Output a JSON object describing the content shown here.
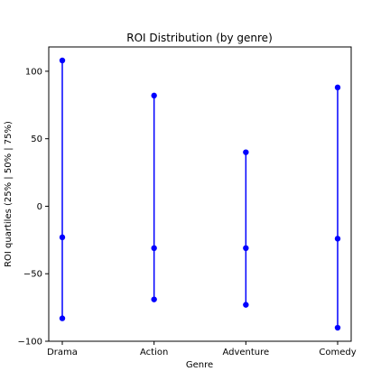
{
  "chart_data": {
    "type": "scatter",
    "title": "ROI Distribution (by genre)",
    "xlabel": "Genre",
    "ylabel": "ROI quartiles (25% | 50% | 75%)",
    "ylim": [
      -100,
      118
    ],
    "yticks": [
      -100,
      -50,
      0,
      50,
      100
    ],
    "ytick_labels": [
      "−100",
      "−50",
      "0",
      "50",
      "100"
    ],
    "categories": [
      "Drama",
      "Action",
      "Adventure",
      "Comedy"
    ],
    "series": [
      {
        "values": [
          {
            "q25": -83,
            "q50": -23,
            "q75": 108
          },
          {
            "q25": -69,
            "q50": -31,
            "q75": 82
          },
          {
            "q25": -73,
            "q50": -31,
            "q75": 40
          },
          {
            "q25": -90,
            "q50": -24,
            "q75": 88
          }
        ]
      }
    ],
    "grid": false,
    "color": "#0000ff"
  }
}
